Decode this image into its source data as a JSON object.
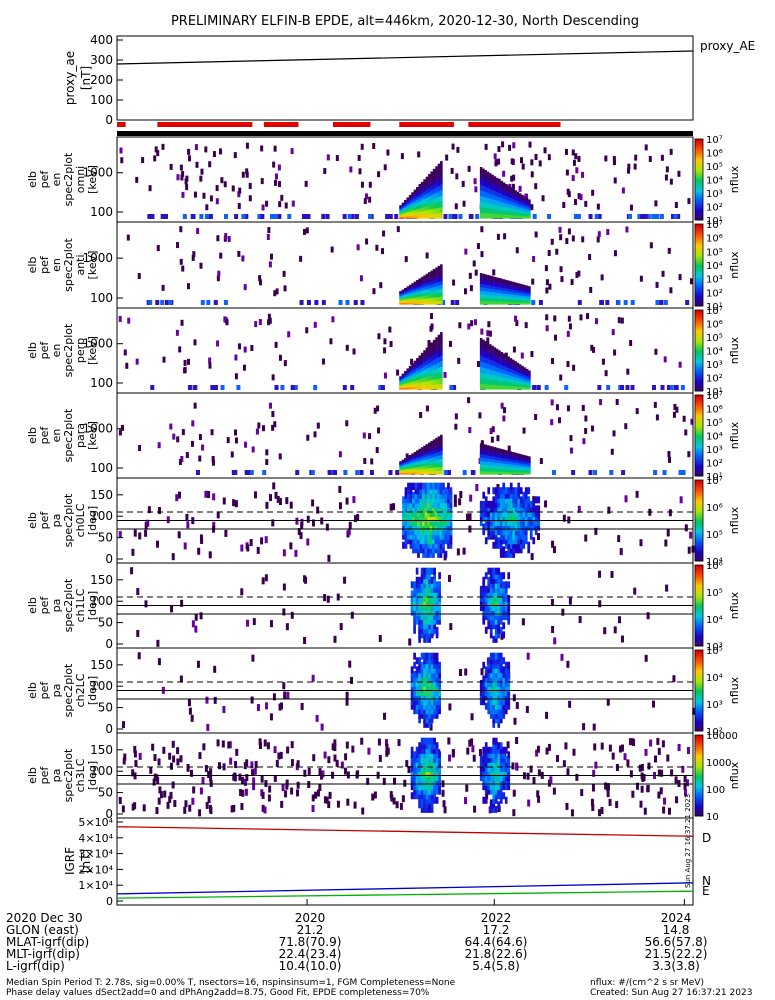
{
  "title": "PRELIMINARY ELFIN-B EPDE, alt=446km, 2020-12-30, North Descending",
  "proxy_panel": {
    "ylabel": "proxy_ae\n[nT]",
    "ticks": [
      "0",
      "100",
      "200",
      "300",
      "400"
    ],
    "legend": "proxy_AE"
  },
  "energy_panels": [
    {
      "ylabel": [
        "elb",
        "pef",
        "en",
        "spec2plot",
        "omni",
        "[keV]"
      ],
      "ticks": [
        "100",
        "1000"
      ],
      "cbar_label": "nflux",
      "cbar_ticks": [
        "10¹",
        "10²",
        "10³",
        "10⁴",
        "10⁵",
        "10⁶",
        "10⁷"
      ]
    },
    {
      "ylabel": [
        "elb",
        "pef",
        "en",
        "spec2plot",
        "anti",
        "[keV]"
      ],
      "ticks": [
        "100",
        "1000"
      ],
      "cbar_label": "nflux",
      "cbar_ticks": [
        "10¹",
        "10²",
        "10³",
        "10⁴",
        "10⁵",
        "10⁶",
        "10⁷"
      ]
    },
    {
      "ylabel": [
        "elb",
        "pef",
        "en",
        "spec2plot",
        "perp",
        "[keV]"
      ],
      "ticks": [
        "100",
        "1000"
      ],
      "cbar_label": "nflux",
      "cbar_ticks": [
        "10¹",
        "10²",
        "10³",
        "10⁴",
        "10⁵",
        "10⁶",
        "10⁷"
      ]
    },
    {
      "ylabel": [
        "elb",
        "pef",
        "en",
        "spec2plot",
        "para",
        "[keV]"
      ],
      "ticks": [
        "100",
        "1000"
      ],
      "cbar_label": "nflux",
      "cbar_ticks": [
        "10¹",
        "10²",
        "10³",
        "10⁴",
        "10⁵",
        "10⁶",
        "10⁷"
      ]
    }
  ],
  "pitch_panels": [
    {
      "ylabel": [
        "elb",
        "pef",
        "pa",
        "spec2plot",
        "ch0LC",
        "[deg]"
      ],
      "ticks": [
        "0",
        "50",
        "100",
        "150"
      ],
      "cbar_label": "nflux",
      "cbar_ticks": [
        "10⁴",
        "10⁵",
        "10⁶",
        "10⁷"
      ]
    },
    {
      "ylabel": [
        "elb",
        "pef",
        "pa",
        "spec2plot",
        "ch1LC",
        "[deg]"
      ],
      "ticks": [
        "0",
        "50",
        "100",
        "150"
      ],
      "cbar_label": "nflux",
      "cbar_ticks": [
        "10³",
        "10⁴",
        "10⁵",
        "10⁶"
      ]
    },
    {
      "ylabel": [
        "elb",
        "pef",
        "pa",
        "spec2plot",
        "ch2LC",
        "[deg]"
      ],
      "ticks": [
        "0",
        "50",
        "100",
        "150"
      ],
      "cbar_label": "nflux",
      "cbar_ticks": [
        "10²",
        "10³",
        "10⁴",
        "10⁵"
      ]
    },
    {
      "ylabel": [
        "elb",
        "pef",
        "pa",
        "spec2plot",
        "ch3LC",
        "[deg]"
      ],
      "ticks": [
        "0",
        "50",
        "100",
        "150"
      ],
      "cbar_label": "nflux",
      "cbar_ticks": [
        "10",
        "100",
        "1000",
        "10000"
      ]
    }
  ],
  "igrf_panel": {
    "ylabel": "IGRF\n[nT]",
    "ticks": [
      "0",
      "1×10⁴",
      "2×10⁴",
      "3×10⁴",
      "4×10⁴",
      "5×10⁴"
    ],
    "labels": [
      "D",
      "N",
      "E"
    ]
  },
  "stamp": "Sun Aug 27 16:37:21 2023",
  "footer": {
    "row_labels": [
      "2020 Dec 30",
      "GLON (east)",
      "MLAT-igrf(dip)",
      "MLT-igrf(dip)",
      "L-igrf(dip)"
    ],
    "col1": [
      "2020",
      "21.2",
      "71.8(70.9)",
      "22.4(23.4)",
      "10.4(10.0)"
    ],
    "col2": [
      "2022",
      "17.2",
      "64.4(64.6)",
      "21.8(22.6)",
      "5.4(5.8)"
    ],
    "col3": [
      "2024",
      "14.8",
      "56.6(57.8)",
      "21.5(22.2)",
      "3.3(3.8)"
    ],
    "note1": "Median Spin Period T: 2.78s, sig=0.00% T, nsectors=16, nspinsinsum=1, FGM Completeness=None",
    "note2": "Phase delay values dSect2add=0 and dPhAng2add=8.75, Good Fit, EPDE completeness=70%",
    "units": "nflux: #/(cm^2 s sr MeV)",
    "created": "Created: Sun Aug 27 16:37:21 2023"
  },
  "chart_data": {
    "type": "heatmap",
    "x_ticks": [
      "2020",
      "2022",
      "2024"
    ],
    "proxy_ae": {
      "x": [
        0,
        1
      ],
      "y": [
        280,
        345
      ],
      "ylim": [
        0,
        420
      ]
    },
    "igrf": {
      "ylim": [
        0,
        50000
      ],
      "series": [
        {
          "name": "D",
          "color": "#c00000",
          "y0": 47000,
          "y1": 41000
        },
        {
          "name": "N",
          "color": "#0000d0",
          "y0": 4500,
          "y1": 11500
        },
        {
          "name": "E",
          "color": "#00b000",
          "y0": 1800,
          "y1": 6200
        }
      ]
    },
    "coverage_bars": [
      [
        0.0,
        0.015
      ],
      [
        0.07,
        0.235
      ],
      [
        0.255,
        0.315
      ],
      [
        0.375,
        0.44
      ],
      [
        0.49,
        0.585
      ],
      [
        0.61,
        0.77
      ]
    ],
    "pitch_reference_lines_deg": [
      70,
      90,
      110
    ]
  }
}
